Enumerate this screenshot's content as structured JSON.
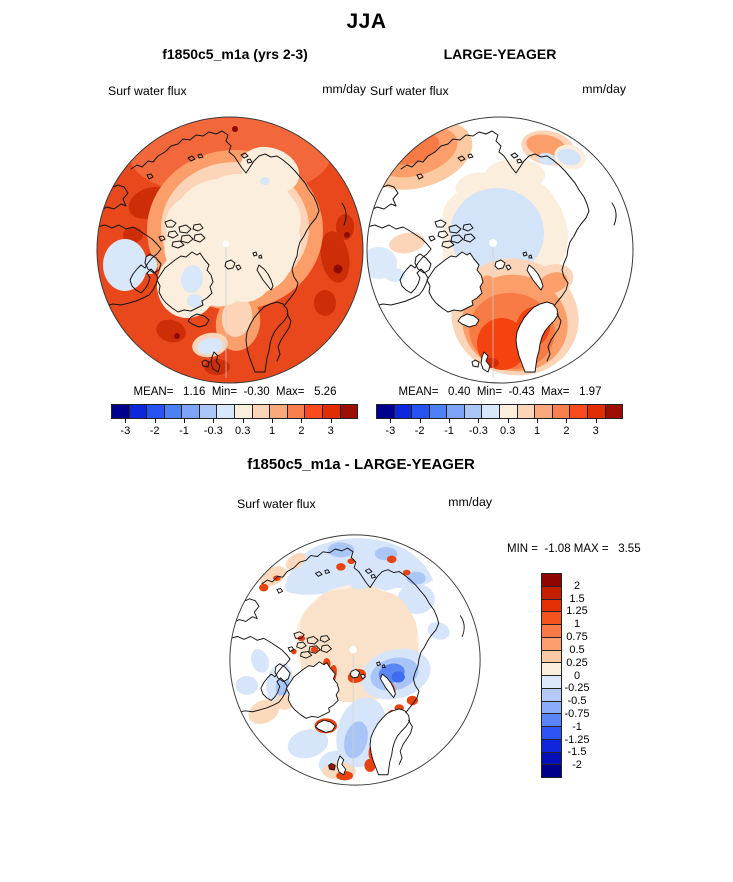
{
  "figure": {
    "title": "JJA",
    "top_left": {
      "title": "f1850c5_m1a (yrs 2-3)",
      "field": "Surf water flux",
      "units": "mm/day",
      "stats": "MEAN=   1.16  Min=  -0.30  Max=   5.26"
    },
    "top_right": {
      "title": "LARGE-YEAGER",
      "field": "Surf water flux",
      "units": "mm/day",
      "stats": "MEAN=   0.40  Min=  -0.43  Max=   1.97"
    },
    "diff": {
      "title": "f1850c5_m1a - LARGE-YEAGER",
      "field": "Surf water flux",
      "units": "mm/day",
      "range": "MIN =  -1.08 MAX =   3.55"
    }
  },
  "colorbars": {
    "top_ticks": [
      "-3",
      "-2",
      "-1",
      "-0.3",
      "0.3",
      "1",
      "2",
      "3"
    ],
    "top_palette": [
      "#00008f",
      "#0f27dc",
      "#2753f2",
      "#4d7ff5",
      "#7da4f8",
      "#abc6f7",
      "#d8e7fa",
      "#fceedd",
      "#fcd4b8",
      "#fba87c",
      "#fa7f4f",
      "#fb4a1d",
      "#e02d04",
      "#9d0d00"
    ],
    "diff_labels": [
      "2",
      "1.5",
      "1.25",
      "1",
      "0.75",
      "0.5",
      "0.25",
      "0",
      "-0.25",
      "-0.5",
      "-0.75",
      "-1",
      "-1.25",
      "-1.5",
      "-2"
    ],
    "diff_palette": [
      "#8e0400",
      "#c41d00",
      "#e43005",
      "#f4531f",
      "#fa7a47",
      "#fc9e6e",
      "#fcc9a4",
      "#fceedd",
      "#dce9fa",
      "#b5caf8",
      "#8aacfa",
      "#5a85f8",
      "#2d53f2",
      "#1026dd",
      "#0010b8",
      "#00008b"
    ]
  },
  "chart_data": {
    "type": "heatmap",
    "subtype": "north-polar-stereographic contour maps",
    "season": "JJA",
    "field": "Surf water flux",
    "units": "mm/day",
    "panels": [
      {
        "name": "f1850c5_m1a (yrs 2-3)",
        "mean": 1.16,
        "min": -0.3,
        "max": 5.26,
        "colorbar_orientation": "horizontal",
        "colorbar_ticks": [
          -3,
          -2,
          -1,
          -0.3,
          0.3,
          1,
          2,
          3
        ],
        "n_colors": 14
      },
      {
        "name": "LARGE-YEAGER",
        "mean": 0.4,
        "min": -0.43,
        "max": 1.97,
        "colorbar_orientation": "horizontal",
        "colorbar_ticks": [
          -3,
          -2,
          -1,
          -0.3,
          0.3,
          1,
          2,
          3
        ],
        "n_colors": 14
      },
      {
        "name": "f1850c5_m1a - LARGE-YEAGER",
        "min": -1.08,
        "max": 3.55,
        "colorbar_orientation": "vertical",
        "colorbar_ticks": [
          2,
          1.5,
          1.25,
          1,
          0.75,
          0.5,
          0.25,
          0,
          -0.25,
          -0.5,
          -0.75,
          -1,
          -1.25,
          -1.5,
          -2
        ],
        "n_colors": 16
      }
    ]
  }
}
